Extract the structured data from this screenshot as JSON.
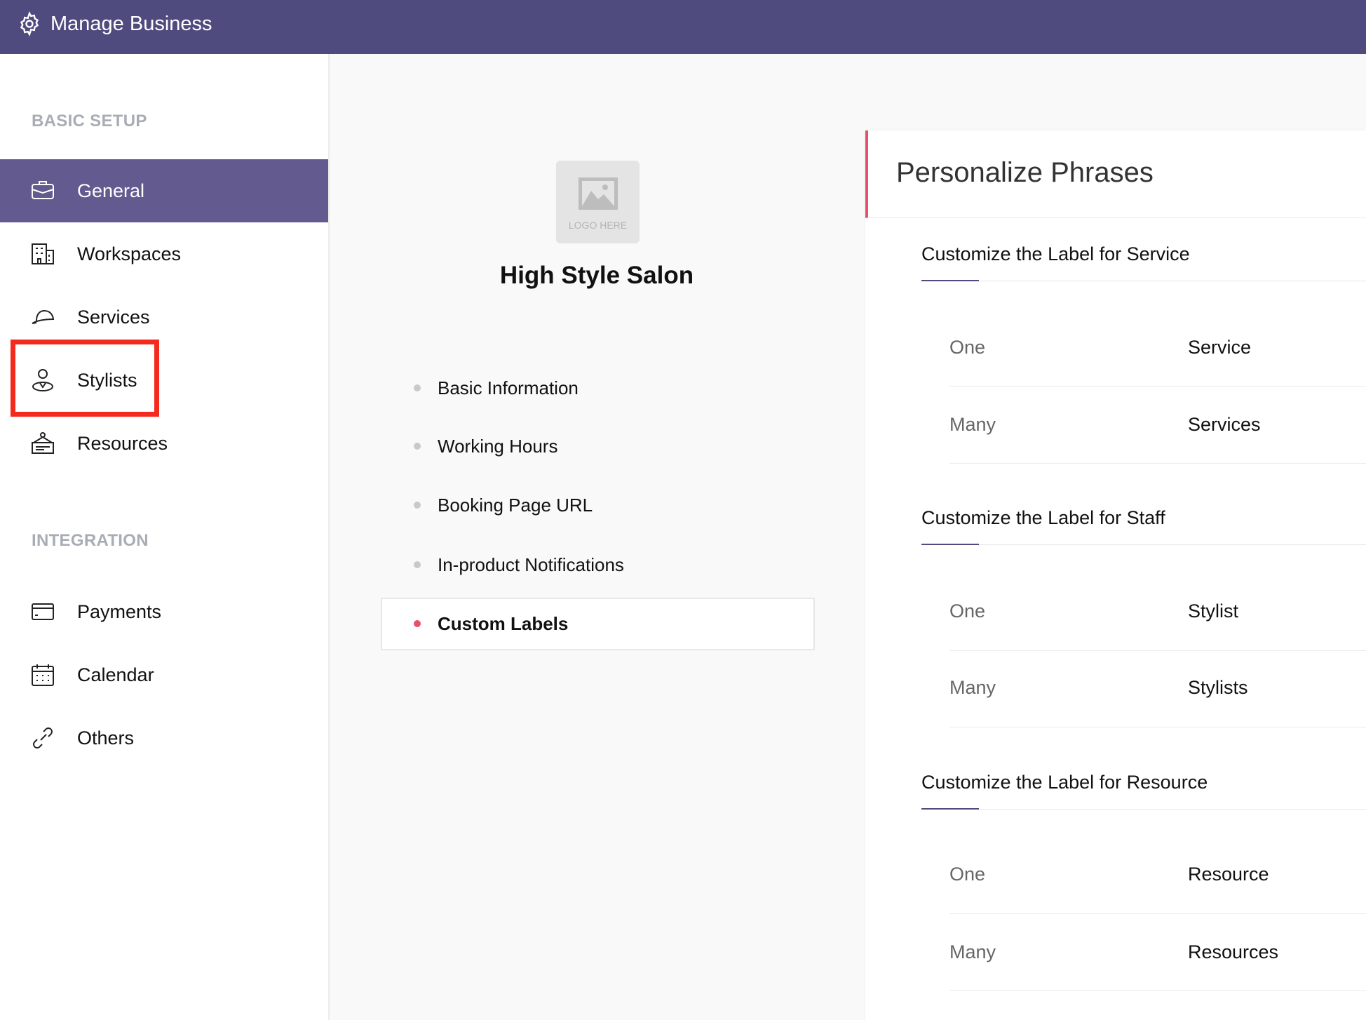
{
  "header": {
    "title": "Manage Business",
    "icon": "gear-icon"
  },
  "sidebar": {
    "basic_setup_label": "BASIC SETUP",
    "basic_items": [
      {
        "label": "General",
        "icon": "briefcase-icon",
        "active": true
      },
      {
        "label": "Workspaces",
        "icon": "building-icon"
      },
      {
        "label": "Services",
        "icon": "cap-icon"
      },
      {
        "label": "Stylists",
        "icon": "person-icon",
        "highlighted": true
      },
      {
        "label": "Resources",
        "icon": "desk-sign-icon"
      }
    ],
    "integration_label": "INTEGRATION",
    "integration_items": [
      {
        "label": "Payments",
        "icon": "credit-card-icon"
      },
      {
        "label": "Calendar",
        "icon": "calendar-icon"
      },
      {
        "label": "Others",
        "icon": "link-icon"
      }
    ]
  },
  "business": {
    "logo_text": "LOGO HERE",
    "name": "High Style Salon"
  },
  "subnav": [
    {
      "label": "Basic Information"
    },
    {
      "label": "Working Hours"
    },
    {
      "label": "Booking Page URL"
    },
    {
      "label": "In-product Notifications"
    },
    {
      "label": "Custom Labels",
      "active": true
    }
  ],
  "panel": {
    "title": "Personalize Phrases",
    "sections": [
      {
        "title": "Customize the Label for Service",
        "rows": [
          {
            "label": "One",
            "value": "Service"
          },
          {
            "label": "Many",
            "value": "Services"
          }
        ]
      },
      {
        "title": "Customize the Label for Staff",
        "rows": [
          {
            "label": "One",
            "value": "Stylist"
          },
          {
            "label": "Many",
            "value": "Stylists"
          }
        ]
      },
      {
        "title": "Customize the Label for Resource",
        "rows": [
          {
            "label": "One",
            "value": "Resource"
          },
          {
            "label": "Many",
            "value": "Resources"
          }
        ]
      }
    ]
  },
  "colors": {
    "header": "#4f4b7e",
    "active": "#635a8f",
    "accent": "#e8506a",
    "highlight_box": "#f52a1f"
  }
}
